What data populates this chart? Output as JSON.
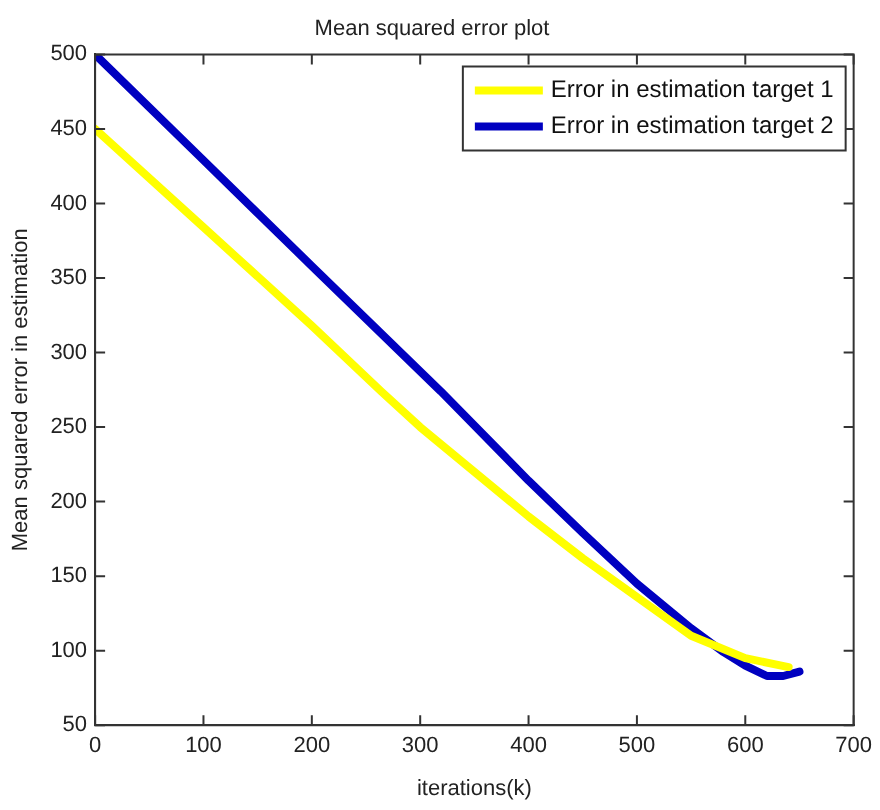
{
  "chart_data": {
    "type": "line",
    "title": "Mean squared error plot",
    "xlabel": "iterations(k)",
    "ylabel": "Mean squared error in estimation",
    "xlim": [
      0,
      700
    ],
    "xticks": [
      0,
      100,
      200,
      300,
      400,
      500,
      600,
      700
    ],
    "ylim": [
      50,
      500
    ],
    "yticks": [
      50,
      100,
      150,
      200,
      250,
      300,
      350,
      400,
      450,
      500
    ],
    "grid": false,
    "legend": "top right",
    "marker": "none",
    "line_style": "solid",
    "series": [
      {
        "name": "Error in estimation target 1",
        "color": "#ffff00",
        "x": [
          0,
          100,
          200,
          264,
          300,
          400,
          450,
          500,
          550,
          600,
          640
        ],
        "values": [
          450,
          384,
          318,
          274,
          250,
          190,
          162,
          136,
          110,
          95,
          89
        ]
      },
      {
        "name": "Error in estimation target 2",
        "color": "#0000c0",
        "x": [
          0,
          100,
          200,
          319,
          400,
          450,
          500,
          550,
          580,
          600,
          620,
          635,
          650
        ],
        "values": [
          500,
          429,
          358,
          274,
          214,
          179,
          145,
          115,
          99,
          90,
          83,
          83,
          86
        ]
      }
    ]
  }
}
